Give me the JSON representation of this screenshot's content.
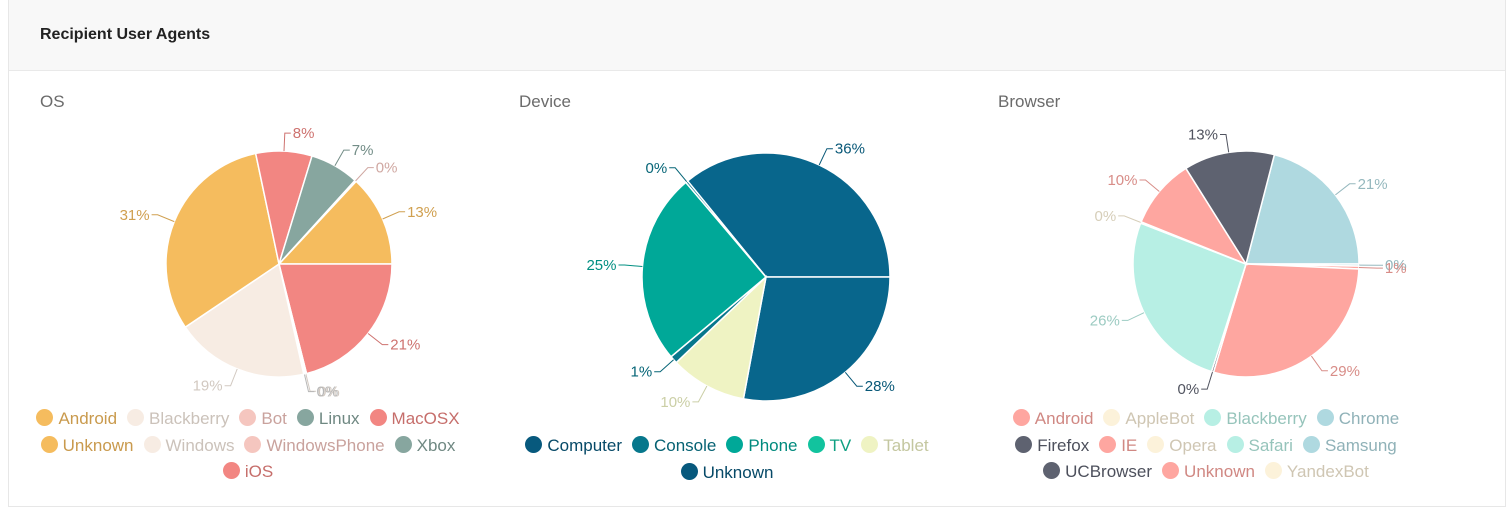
{
  "card": {
    "title": "Recipient User Agents"
  },
  "panels": [
    {
      "title": "OS",
      "chart_data": {
        "type": "pie",
        "slices": [
          {
            "label": "Android",
            "value": 13,
            "color": "#f5bc5e",
            "pct": "13%"
          },
          {
            "label": "MacOSX",
            "value": 21,
            "color": "#f28682",
            "pct": "21%"
          },
          {
            "label": "Windows",
            "value": 0.2,
            "color": "#f7ece3",
            "pct": "0%"
          },
          {
            "label": "Xbox",
            "value": 0.2,
            "color": "#d7d7d7",
            "pct": "0%"
          },
          {
            "label": "Windows",
            "value": 19,
            "color": "#f7ece3",
            "pct": "19%"
          },
          {
            "label": "Unknown",
            "value": 31,
            "color": "#f5bc5e",
            "pct": "31%"
          },
          {
            "label": "iOS",
            "value": 8,
            "color": "#f28682",
            "pct": "8%"
          },
          {
            "label": "Linux",
            "value": 7,
            "color": "#87a69f",
            "pct": "7%"
          },
          {
            "label": "WindowsPhone",
            "value": 0.2,
            "color": "#f5c6bf",
            "pct": "0%"
          }
        ]
      },
      "legend": [
        {
          "label": "Android",
          "color": "#f5bc5e"
        },
        {
          "label": "Blackberry",
          "color": "#f7ece3"
        },
        {
          "label": "Bot",
          "color": "#f5c6bf"
        },
        {
          "label": "Linux",
          "color": "#87a69f"
        },
        {
          "label": "MacOSX",
          "color": "#f28682"
        },
        {
          "label": "Unknown",
          "color": "#f5bc5e"
        },
        {
          "label": "Windows",
          "color": "#f7ece3"
        },
        {
          "label": "WindowsPhone",
          "color": "#f5c6bf"
        },
        {
          "label": "Xbox",
          "color": "#87a69f"
        },
        {
          "label": "iOS",
          "color": "#f28682"
        }
      ]
    },
    {
      "title": "Device",
      "chart_data": {
        "type": "pie",
        "slices": [
          {
            "label": "Computer",
            "value": 36,
            "color": "#08668c",
            "pct": "36%"
          },
          {
            "label": "Computer",
            "value": 28,
            "color": "#08668c",
            "pct": "28%"
          },
          {
            "label": "Tablet",
            "value": 10,
            "color": "#eff3c3",
            "pct": "10%"
          },
          {
            "label": "Console",
            "value": 1,
            "color": "#07778c",
            "pct": "1%"
          },
          {
            "label": "Phone",
            "value": 25,
            "color": "#00a898",
            "pct": "25%"
          },
          {
            "label": "Console",
            "value": 0.3,
            "color": "#07778c",
            "pct": "0%"
          }
        ]
      },
      "legend": [
        {
          "label": "Computer",
          "color": "#07597d"
        },
        {
          "label": "Console",
          "color": "#07778c"
        },
        {
          "label": "Phone",
          "color": "#00a898"
        },
        {
          "label": "TV",
          "color": "#12c39e"
        },
        {
          "label": "Tablet",
          "color": "#eff3c3"
        },
        {
          "label": "Unknown",
          "color": "#07597d"
        }
      ]
    },
    {
      "title": "Browser",
      "chart_data": {
        "type": "pie",
        "slices": [
          {
            "label": "Chrome",
            "value": 21,
            "color": "#afd9e0",
            "pct": "21%"
          },
          {
            "label": "Samsung",
            "value": 0.3,
            "color": "#afd9e0",
            "pct": "0%"
          },
          {
            "label": "Unknown",
            "value": 0.4,
            "color": "#fea6a0",
            "pct": "1%"
          },
          {
            "label": "Unknown",
            "value": 29,
            "color": "#fea6a0",
            "pct": "29%"
          },
          {
            "label": "Firefox",
            "value": 0.3,
            "color": "#5e6270",
            "pct": "0%"
          },
          {
            "label": "Blackberry",
            "value": 26,
            "color": "#b7efe4",
            "pct": "26%"
          },
          {
            "label": "AppleBot",
            "value": 0.2,
            "color": "#fcf2da",
            "pct": "0%"
          },
          {
            "label": "IE",
            "value": 10,
            "color": "#fea6a0",
            "pct": "10%"
          },
          {
            "label": "UCBrowser",
            "value": 13,
            "color": "#5e6270",
            "pct": "13%"
          }
        ]
      },
      "legend": [
        {
          "label": "Android",
          "color": "#fea6a0"
        },
        {
          "label": "AppleBot",
          "color": "#fcf2da"
        },
        {
          "label": "Blackberry",
          "color": "#b7efe4"
        },
        {
          "label": "Chrome",
          "color": "#afd9e0"
        },
        {
          "label": "Firefox",
          "color": "#5e6270"
        },
        {
          "label": "IE",
          "color": "#fea6a0"
        },
        {
          "label": "Opera",
          "color": "#fcf2da"
        },
        {
          "label": "Safari",
          "color": "#b7efe4"
        },
        {
          "label": "Samsung",
          "color": "#afd9e0"
        },
        {
          "label": "UCBrowser",
          "color": "#5e6270"
        },
        {
          "label": "Unknown",
          "color": "#fea6a0"
        },
        {
          "label": "YandexBot",
          "color": "#fcf2da"
        }
      ]
    }
  ]
}
